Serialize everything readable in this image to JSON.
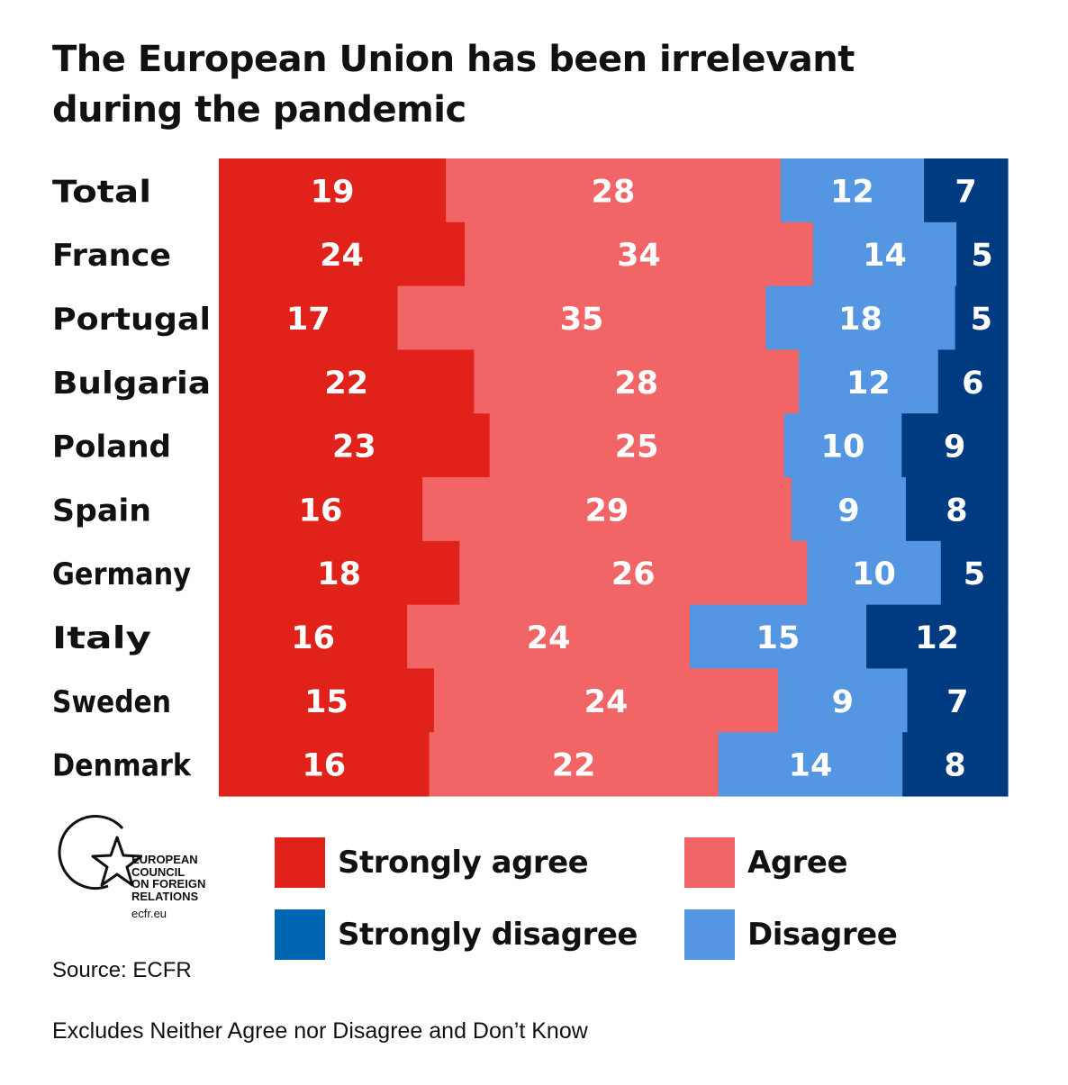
{
  "title": "The European Union has been irrelevant during the pandemic",
  "chart_data": {
    "type": "bar",
    "orientation": "horizontal",
    "stacked": true,
    "title": "The European Union has been irrelevant during the pandemic",
    "categories": [
      "Total",
      "France",
      "Portugal",
      "Bulgaria",
      "Poland",
      "Spain",
      "Germany",
      "Italy",
      "Sweden",
      "Denmark"
    ],
    "series": [
      {
        "name": "Strongly agree",
        "color": "#e1221b",
        "values": [
          19,
          24,
          17,
          22,
          23,
          16,
          18,
          16,
          15,
          16
        ]
      },
      {
        "name": "Agree",
        "color": "#f26566",
        "values": [
          28,
          34,
          35,
          28,
          25,
          29,
          26,
          24,
          24,
          22
        ]
      },
      {
        "name": "Disagree",
        "color": "#5596e2",
        "values": [
          12,
          14,
          18,
          12,
          10,
          9,
          10,
          15,
          9,
          14
        ]
      },
      {
        "name": "Strongly disagree",
        "color": "#003a80",
        "values": [
          7,
          5,
          5,
          6,
          9,
          8,
          5,
          12,
          7,
          8
        ]
      }
    ],
    "grid": false,
    "legend_position": "bottom"
  },
  "legend": {
    "strongly_agree": "Strongly agree",
    "agree": "Agree",
    "strongly_disagree": "Strongly disagree",
    "disagree": "Disagree",
    "strongly_disagree_swatch_color": "#0066b3"
  },
  "logo": {
    "line1": "EUROPEAN",
    "line2": "COUNCIL",
    "line3": "ON FOREIGN",
    "line4": "RELATIONS",
    "url": "ecfr.eu"
  },
  "source": "Source: ECFR",
  "note": "Excludes Neither Agree nor Disagree and Don’t Know"
}
